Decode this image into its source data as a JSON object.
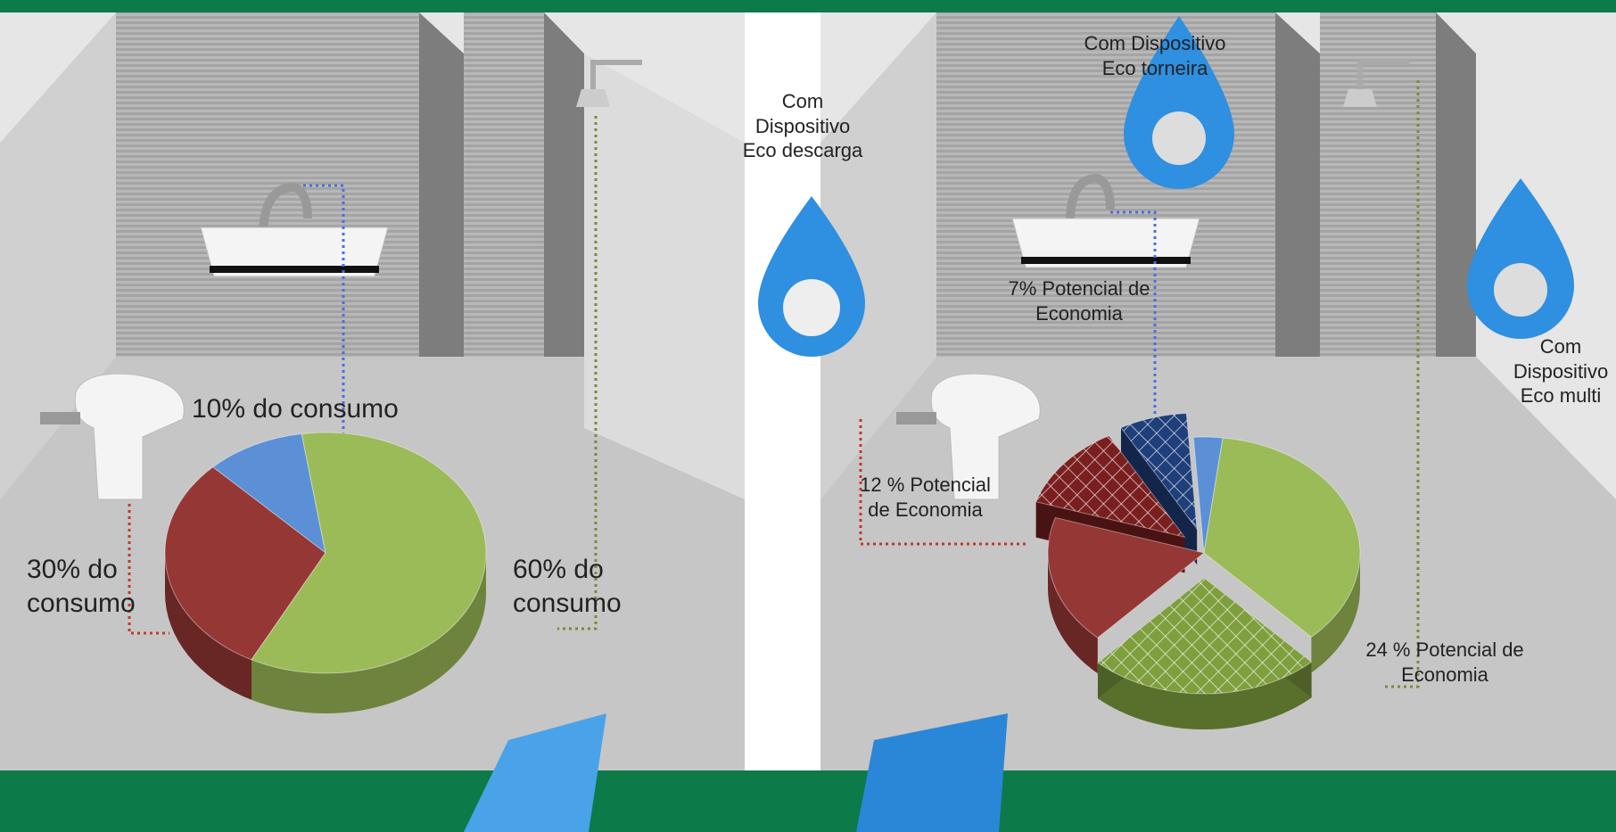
{
  "chart_data": [
    {
      "type": "pie",
      "values": [
        10,
        30,
        60
      ],
      "value_labels": [
        "10% do consumo",
        "30% do consumo",
        "60% do consumo"
      ],
      "colors": [
        "#5b8fd6",
        "#953735",
        "#9bbb59"
      ],
      "hatched": [
        false,
        false,
        false
      ]
    },
    {
      "type": "pie",
      "values": [
        3,
        7,
        12,
        18,
        24,
        36
      ],
      "value_labels": [
        null,
        "7% Potencial de Economia",
        "12 % Potencial de Economia",
        null,
        "24 % Potencial de Economia",
        null
      ],
      "colors": [
        "#5b8fd6",
        "#1f3f7a",
        "#7a1f1f",
        "#953735",
        "#7f9f3f",
        "#9bbb59"
      ],
      "hatched": [
        false,
        true,
        true,
        false,
        true,
        false
      ],
      "annotations": [
        "Com Dispositivo Eco torneira",
        "Com Dispositivo Eco descarga",
        "Com Dispositivo Eco multi"
      ]
    }
  ]
}
